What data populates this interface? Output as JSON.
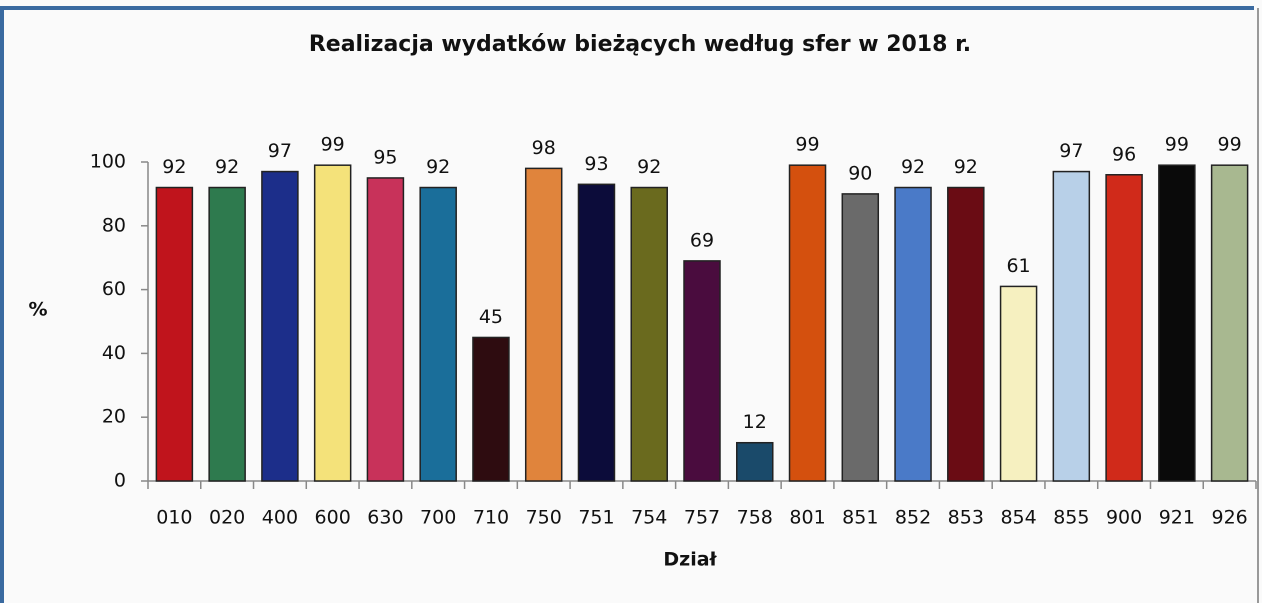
{
  "chart_data": {
    "type": "bar",
    "title": "Realizacja wydatków bieżących według sfer w 2018 r.",
    "x_label": "Dział",
    "y_label": "%",
    "categories": [
      "010",
      "020",
      "400",
      "600",
      "630",
      "700",
      "710",
      "750",
      "751",
      "754",
      "757",
      "758",
      "801",
      "851",
      "852",
      "853",
      "854",
      "855",
      "900",
      "921",
      "926"
    ],
    "values": [
      92,
      92,
      97,
      99,
      95,
      92,
      45,
      98,
      93,
      92,
      69,
      12,
      99,
      90,
      92,
      92,
      61,
      97,
      96,
      99,
      99
    ],
    "colors": [
      "#c0141c",
      "#2e7a4e",
      "#1c2e8a",
      "#f4e27a",
      "#c8325a",
      "#1a6e9a",
      "#2e0c10",
      "#e0843c",
      "#0c0c3a",
      "#6a6a1e",
      "#4a0c3e",
      "#1a4a6a",
      "#d4500e",
      "#6a6a6a",
      "#4a7ac8",
      "#6a0c14",
      "#f6f0c0",
      "#b8d0e8",
      "#d02a1a",
      "#0a0a0a",
      "#a8b890"
    ],
    "ylim": [
      0,
      100
    ],
    "yticks": [
      0,
      20,
      40,
      60,
      80,
      100
    ],
    "grid": false
  }
}
